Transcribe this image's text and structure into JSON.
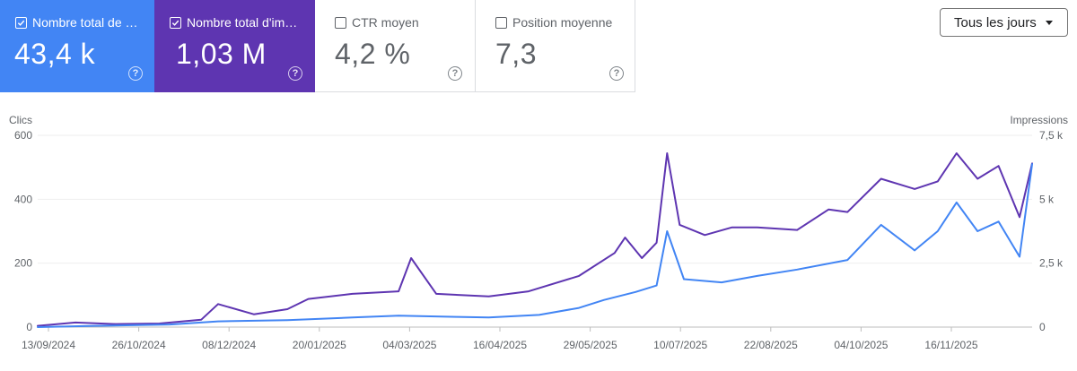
{
  "metrics": [
    {
      "key": "clicks",
      "label": "Nombre total de c…",
      "value": "43,4 k",
      "selected": true,
      "color": "#4285f4",
      "help_icon": "help-circle-icon"
    },
    {
      "key": "impressions",
      "label": "Nombre total d'im…",
      "value": "1,03 M",
      "selected": true,
      "color": "#5e35b1",
      "help_icon": "help-circle-icon"
    },
    {
      "key": "ctr",
      "label": "CTR moyen",
      "value": "4,2 %",
      "selected": false,
      "color": "#ffffff",
      "help_icon": "help-circle-icon"
    },
    {
      "key": "position",
      "label": "Position moyenne",
      "value": "7,3",
      "selected": false,
      "color": "#ffffff",
      "help_icon": "help-circle-icon"
    }
  ],
  "range_select": {
    "value": "Tous les jours",
    "icon": "dropdown-arrow-icon"
  },
  "chart_data": {
    "type": "line",
    "left_axis": {
      "label": "Clics",
      "ticks": [
        "600",
        "400",
        "200",
        "0"
      ],
      "range": [
        0,
        600
      ]
    },
    "right_axis": {
      "label": "Impressions",
      "ticks": [
        "7,5 k",
        "5 k",
        "2,5 k",
        "0"
      ],
      "range": [
        0,
        7500
      ]
    },
    "x_tick_labels": [
      "13/09/2024",
      "26/10/2024",
      "08/12/2024",
      "20/01/2025",
      "04/03/2025",
      "16/04/2025",
      "29/05/2025",
      "10/07/2025",
      "22/08/2025",
      "04/10/2025",
      "16/11/2025"
    ],
    "x_start": "2024-09-13",
    "x_end": "2025-12-31",
    "grid": true,
    "series": [
      {
        "key": "impressions",
        "axis": "right",
        "color": "#5e35b1",
        "points": [
          [
            "2024-09-13",
            50
          ],
          [
            "2024-10-01",
            180
          ],
          [
            "2024-10-20",
            120
          ],
          [
            "2024-11-10",
            140
          ],
          [
            "2024-11-30",
            290
          ],
          [
            "2024-12-08",
            900
          ],
          [
            "2024-12-25",
            500
          ],
          [
            "2025-01-10",
            700
          ],
          [
            "2025-01-20",
            1100
          ],
          [
            "2025-02-10",
            1300
          ],
          [
            "2025-03-04",
            1400
          ],
          [
            "2025-03-10",
            2700
          ],
          [
            "2025-03-22",
            1300
          ],
          [
            "2025-04-16",
            1200
          ],
          [
            "2025-05-05",
            1400
          ],
          [
            "2025-05-29",
            2000
          ],
          [
            "2025-06-15",
            2900
          ],
          [
            "2025-06-20",
            3500
          ],
          [
            "2025-06-28",
            2700
          ],
          [
            "2025-07-05",
            3300
          ],
          [
            "2025-07-10",
            6800
          ],
          [
            "2025-07-16",
            4000
          ],
          [
            "2025-07-28",
            3600
          ],
          [
            "2025-08-10",
            3900
          ],
          [
            "2025-08-22",
            3900
          ],
          [
            "2025-09-10",
            3800
          ],
          [
            "2025-09-25",
            4600
          ],
          [
            "2025-10-04",
            4500
          ],
          [
            "2025-10-20",
            5800
          ],
          [
            "2025-11-05",
            5400
          ],
          [
            "2025-11-16",
            5700
          ],
          [
            "2025-11-25",
            6800
          ],
          [
            "2025-12-05",
            5800
          ],
          [
            "2025-12-15",
            6300
          ],
          [
            "2025-12-25",
            4300
          ],
          [
            "2025-12-31",
            6400
          ]
        ]
      },
      {
        "key": "clicks",
        "axis": "left",
        "color": "#4285f4",
        "points": [
          [
            "2024-09-13",
            0
          ],
          [
            "2024-10-10",
            4
          ],
          [
            "2024-11-15",
            8
          ],
          [
            "2024-12-08",
            18
          ],
          [
            "2025-01-10",
            22
          ],
          [
            "2025-02-10",
            30
          ],
          [
            "2025-03-04",
            36
          ],
          [
            "2025-04-01",
            32
          ],
          [
            "2025-04-16",
            30
          ],
          [
            "2025-05-10",
            38
          ],
          [
            "2025-05-29",
            60
          ],
          [
            "2025-06-10",
            85
          ],
          [
            "2025-06-25",
            110
          ],
          [
            "2025-07-05",
            130
          ],
          [
            "2025-07-10",
            300
          ],
          [
            "2025-07-18",
            150
          ],
          [
            "2025-08-05",
            140
          ],
          [
            "2025-08-22",
            160
          ],
          [
            "2025-09-10",
            180
          ],
          [
            "2025-10-04",
            210
          ],
          [
            "2025-10-20",
            320
          ],
          [
            "2025-11-05",
            240
          ],
          [
            "2025-11-16",
            300
          ],
          [
            "2025-11-25",
            390
          ],
          [
            "2025-12-05",
            300
          ],
          [
            "2025-12-15",
            330
          ],
          [
            "2025-12-25",
            220
          ],
          [
            "2025-12-31",
            510
          ]
        ]
      }
    ]
  }
}
